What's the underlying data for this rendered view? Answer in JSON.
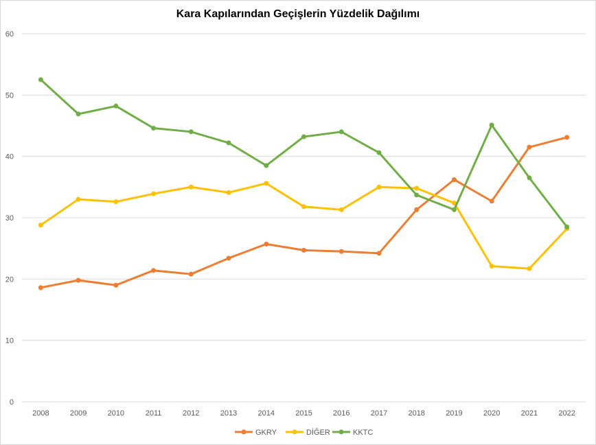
{
  "chart_data": {
    "type": "line",
    "title": "Kara Kapılarından Geçişlerin Yüzdelik Dağılımı",
    "xlabel": "",
    "ylabel": "",
    "categories": [
      "2008",
      "2009",
      "2010",
      "2011",
      "2012",
      "2013",
      "2014",
      "2015",
      "2016",
      "2017",
      "2018",
      "2019",
      "2020",
      "2021",
      "2022"
    ],
    "ylim": [
      0,
      60
    ],
    "yticks": [
      "0",
      "10",
      "20",
      "30",
      "40",
      "50",
      "60"
    ],
    "grid": true,
    "legend": "bottom",
    "series": [
      {
        "name": "GKRY",
        "color": "#ED7D31",
        "values": [
          18.6,
          19.8,
          19.0,
          21.4,
          20.8,
          23.4,
          25.7,
          24.7,
          24.5,
          24.2,
          31.3,
          36.2,
          32.7,
          41.5,
          43.1
        ]
      },
      {
        "name": "DİĞER",
        "color": "#FFC000",
        "values": [
          28.8,
          33.0,
          32.6,
          33.9,
          35.0,
          34.1,
          35.6,
          31.8,
          31.3,
          35.0,
          34.8,
          32.4,
          22.1,
          21.7,
          28.2
        ]
      },
      {
        "name": "KKTC",
        "color": "#70AD47",
        "values": [
          52.5,
          46.9,
          48.2,
          44.6,
          44.0,
          42.2,
          38.5,
          43.2,
          44.0,
          40.6,
          33.7,
          31.3,
          45.1,
          36.5,
          28.5
        ]
      }
    ]
  }
}
